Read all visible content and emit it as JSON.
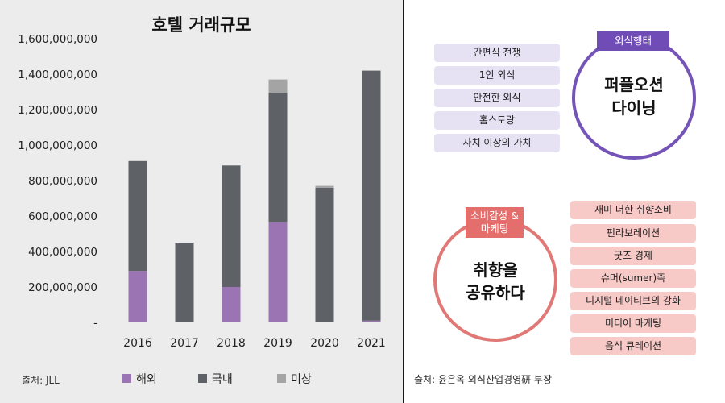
{
  "chart_data": {
    "type": "bar",
    "stacked": true,
    "title": "호텔 거래규모",
    "categories": [
      "2016",
      "2017",
      "2018",
      "2019",
      "2020",
      "2021"
    ],
    "series": [
      {
        "name": "해외",
        "color": "#9b74b3",
        "values": [
          290000000,
          0,
          200000000,
          565000000,
          0,
          10000000
        ]
      },
      {
        "name": "국내",
        "color": "#5e6166",
        "values": [
          620000000,
          450000000,
          685000000,
          730000000,
          760000000,
          1410000000
        ]
      },
      {
        "name": "미상",
        "color": "#a4a4a4",
        "values": [
          0,
          0,
          0,
          75000000,
          10000000,
          0
        ]
      }
    ],
    "ylim": [
      0,
      1600000000
    ],
    "yticks": [
      {
        "value": 0,
        "label": "-"
      },
      {
        "value": 200000000,
        "label": "200,000,000"
      },
      {
        "value": 400000000,
        "label": "400,000,000"
      },
      {
        "value": 600000000,
        "label": "600,000,000"
      },
      {
        "value": 800000000,
        "label": "800,000,000"
      },
      {
        "value": 1000000000,
        "label": "1,000,000,000"
      },
      {
        "value": 1200000000,
        "label": "1,200,000,000"
      },
      {
        "value": 1400000000,
        "label": "1,400,000,000"
      },
      {
        "value": 1600000000,
        "label": "1,600,000,000"
      }
    ],
    "grid": false,
    "legend_position": "bottom",
    "source": "출처: JLL"
  },
  "diagram": {
    "top_badge": "외식행태",
    "top_circle_lines": [
      "퍼플오션",
      "다이닝"
    ],
    "top_items": [
      "간편식 전쟁",
      "1인 외식",
      "안전한 외식",
      "홈스토랑",
      "사치 이상의 가치"
    ],
    "bottom_badge_lines": [
      "소비감성 &",
      "마케팅"
    ],
    "bottom_circle_lines": [
      "취향을",
      "공유하다"
    ],
    "bottom_items": [
      "재미 더한 취향소비",
      "펀라보레이션",
      "굿즈 경제",
      "슈머(sumer)족",
      "디지털 네이티브의 강화",
      "미디어 마케팅",
      "음식 큐레이션"
    ],
    "source": "출처: 윤은옥 외식산업경영硏 부장",
    "colors": {
      "purple": "#7554b8",
      "pink": "#e07876"
    }
  }
}
